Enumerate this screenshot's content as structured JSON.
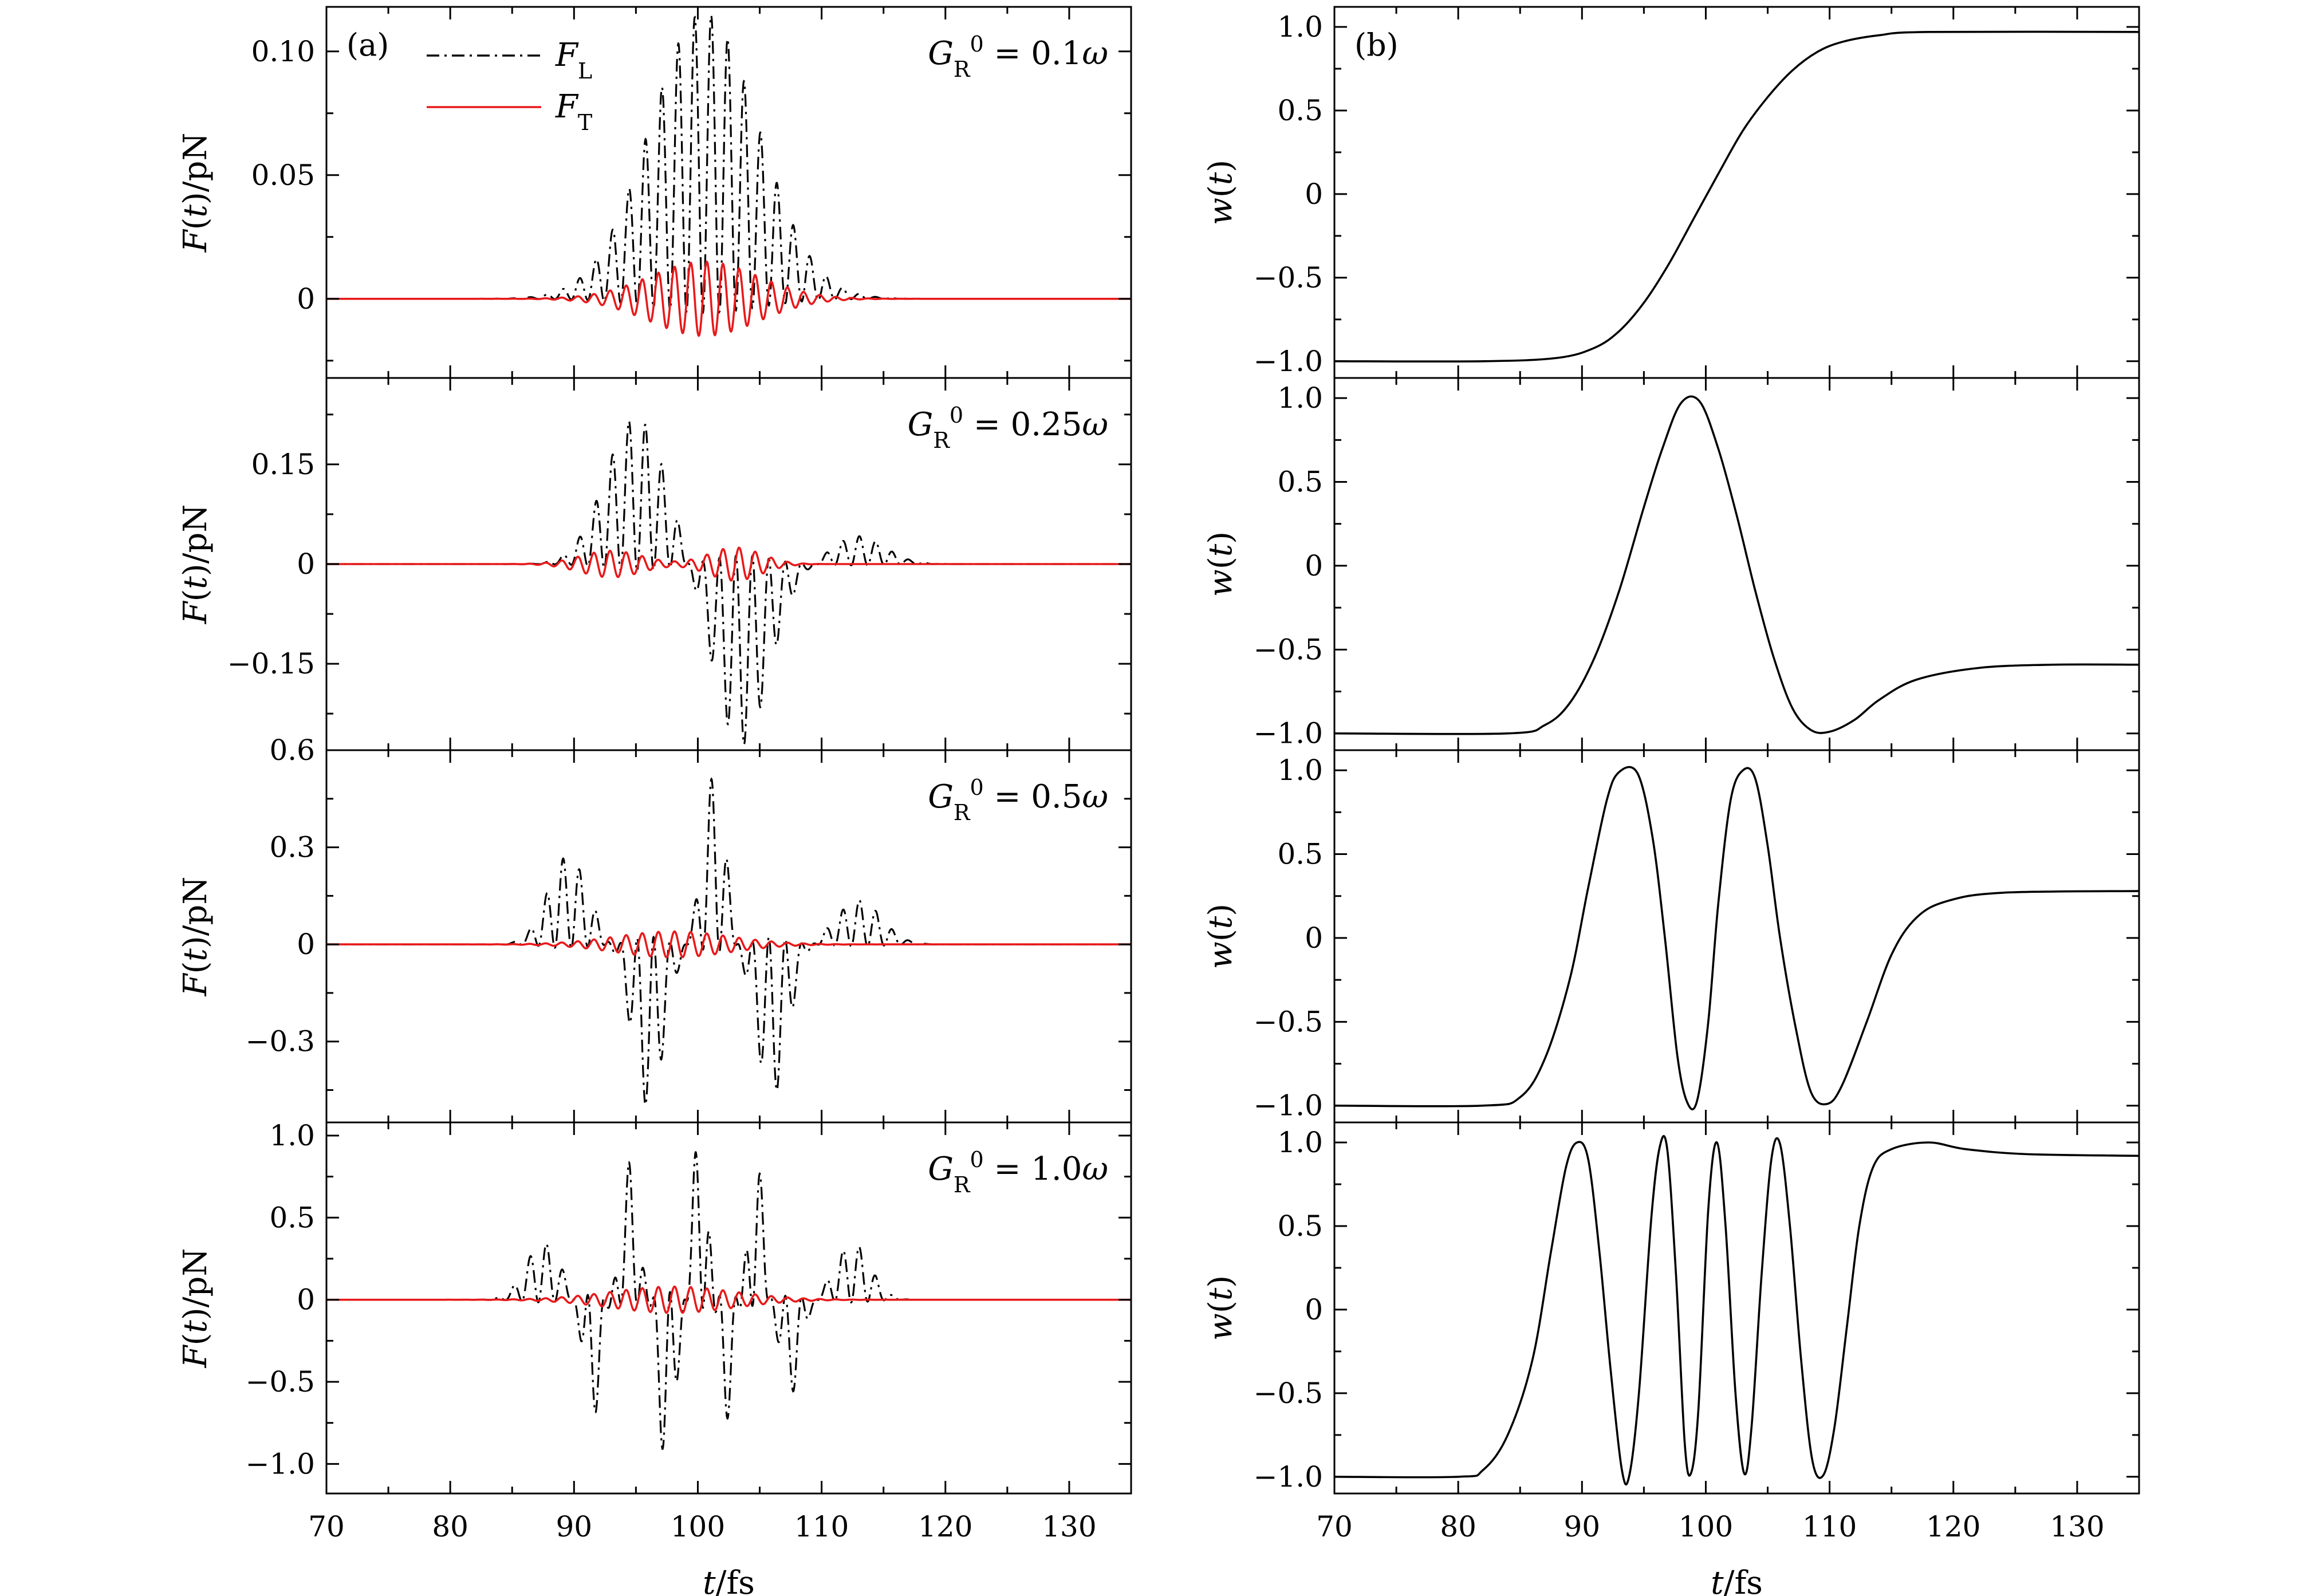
{
  "colors": {
    "FL": "#000000",
    "FT": "#e8191a",
    "w": "#000000"
  },
  "chart_data": [
    {
      "type": "line",
      "panel_label": "(a)",
      "subplots": [
        {
          "annotation": "G_R^0 = 0.1ω",
          "ylabel": "F(t)/pN",
          "ylim": [
            -0.032,
            0.118
          ],
          "yticks": [
            0,
            0.05,
            0.1
          ],
          "ytick_labels": [
            "0",
            "0.05",
            "0.10"
          ],
          "legend": {
            "placement": "top-left",
            "entries": [
              "F_L",
              "F_T"
            ]
          },
          "series": [
            {
              "name": "F_L",
              "style": "dash-dot",
              "envelope": [
                {
                  "center": 100.5,
                  "width": 6.2,
                  "amp": 0.11,
                  "sign": 1
                }
              ]
            },
            {
              "name": "F_T",
              "style": "solid",
              "envelope": [
                {
                  "center": 100.5,
                  "width": 6.2,
                  "amp": 0.015,
                  "sign": 1
                }
              ]
            }
          ]
        },
        {
          "annotation": "G_R^0 = 0.25ω",
          "ylabel": "F(t)/pN",
          "ylim": [
            -0.28,
            0.28
          ],
          "yticks": [
            -0.15,
            0,
            0.15
          ],
          "ytick_labels": [
            "−0.15",
            "0",
            "0.15"
          ],
          "series": [
            {
              "name": "F_L",
              "style": "dash-dot",
              "envelope": [
                {
                  "center": 95,
                  "width": 3.5,
                  "amp": 0.21,
                  "sign": 1
                },
                {
                  "center": 103.5,
                  "width": 3.2,
                  "amp": 0.26,
                  "sign": -1
                },
                {
                  "center": 113,
                  "width": 3.0,
                  "amp": 0.04,
                  "sign": 1
                }
              ]
            },
            {
              "name": "F_T",
              "style": "solid",
              "envelope": [
                {
                  "center": 93,
                  "width": 3.5,
                  "amp": 0.02,
                  "sign": 1
                },
                {
                  "center": 103,
                  "width": 3.0,
                  "amp": 0.025,
                  "sign": 1
                }
              ]
            }
          ]
        },
        {
          "annotation": "G_R^0 = 0.5ω",
          "ylabel": "F(t)/pN",
          "ylim": [
            -0.55,
            0.6
          ],
          "yticks": [
            -0.3,
            0,
            0.3,
            0.6
          ],
          "ytick_labels": [
            "−0.3",
            "0",
            "0.3",
            "0.6"
          ],
          "series": [
            {
              "name": "F_L",
              "style": "dash-dot",
              "envelope": [
                {
                  "center": 89.5,
                  "width": 2.3,
                  "amp": 0.26,
                  "sign": 1
                },
                {
                  "center": 96,
                  "width": 1.8,
                  "amp": 0.48,
                  "sign": -1
                },
                {
                  "center": 101.3,
                  "width": 1.3,
                  "amp": 0.5,
                  "sign": 1
                },
                {
                  "center": 106,
                  "width": 1.8,
                  "amp": 0.45,
                  "sign": -1
                },
                {
                  "center": 113,
                  "width": 2.6,
                  "amp": 0.13,
                  "sign": 1
                }
              ]
            },
            {
              "name": "F_T",
              "style": "solid",
              "envelope": [
                {
                  "center": 98,
                  "width": 6.5,
                  "amp": 0.04,
                  "sign": 1
                }
              ]
            }
          ]
        },
        {
          "annotation": "G_R^0 = 1.0ω",
          "ylabel": "F(t)/pN",
          "ylim": [
            -1.18,
            1.08
          ],
          "yticks": [
            -1.0,
            -0.5,
            0,
            0.5,
            1.0
          ],
          "ytick_labels": [
            "−1.0",
            "−0.5",
            "0",
            "0.5",
            "1.0"
          ],
          "series": [
            {
              "name": "F_L",
              "style": "dash-dot",
              "envelope": [
                {
                  "center": 87.5,
                  "width": 2.0,
                  "amp": 0.33,
                  "sign": 1
                },
                {
                  "center": 91.5,
                  "width": 1.0,
                  "amp": 0.7,
                  "sign": -1
                },
                {
                  "center": 94.5,
                  "width": 1.0,
                  "amp": 0.8,
                  "sign": 1
                },
                {
                  "center": 97.5,
                  "width": 1.0,
                  "amp": 1.0,
                  "sign": -1
                },
                {
                  "center": 100.2,
                  "width": 0.9,
                  "amp": 1.06,
                  "sign": 1
                },
                {
                  "center": 102.3,
                  "width": 1.0,
                  "amp": 0.7,
                  "sign": -1
                },
                {
                  "center": 104.7,
                  "width": 0.9,
                  "amp": 0.85,
                  "sign": 1
                },
                {
                  "center": 107.5,
                  "width": 1.2,
                  "amp": 0.55,
                  "sign": -1
                },
                {
                  "center": 112.5,
                  "width": 2.0,
                  "amp": 0.33,
                  "sign": 1
                }
              ]
            },
            {
              "name": "F_T",
              "style": "solid",
              "envelope": [
                {
                  "center": 98,
                  "width": 7.0,
                  "amp": 0.08,
                  "sign": 1
                }
              ]
            }
          ]
        }
      ],
      "xlim": [
        70,
        135
      ],
      "xticks": [
        70,
        80,
        90,
        100,
        110,
        120,
        130
      ],
      "xlabel": "t/fs"
    },
    {
      "type": "line",
      "panel_label": "(b)",
      "subplots": [
        {
          "ylabel": "w(t)",
          "ylim": [
            -1.1,
            1.12
          ],
          "yticks": [
            -1.0,
            -0.5,
            0,
            0.5,
            1.0
          ],
          "ytick_labels": [
            "−1.0",
            "−0.5",
            "0",
            "0.5",
            "1.0"
          ],
          "points": [
            [
              70,
              -1.0
            ],
            [
              82,
              -1.0
            ],
            [
              88,
              -0.98
            ],
            [
              91,
              -0.92
            ],
            [
              93,
              -0.82
            ],
            [
              95,
              -0.65
            ],
            [
              97,
              -0.42
            ],
            [
              99,
              -0.15
            ],
            [
              101,
              0.12
            ],
            [
              103,
              0.38
            ],
            [
              105,
              0.58
            ],
            [
              107,
              0.74
            ],
            [
              109,
              0.85
            ],
            [
              111,
              0.91
            ],
            [
              114,
              0.95
            ],
            [
              118,
              0.97
            ],
            [
              135,
              0.97
            ]
          ]
        },
        {
          "ylabel": "w(t)",
          "ylim": [
            -1.1,
            1.12
          ],
          "yticks": [
            -1.0,
            -0.5,
            0,
            0.5,
            1.0
          ],
          "ytick_labels": [
            "−1.0",
            "−0.5",
            "0",
            "0.5",
            "1.0"
          ],
          "points": [
            [
              70,
              -1.0
            ],
            [
              84,
              -1.0
            ],
            [
              87,
              -0.95
            ],
            [
              89,
              -0.82
            ],
            [
              91,
              -0.55
            ],
            [
              93,
              -0.15
            ],
            [
              95,
              0.35
            ],
            [
              96.5,
              0.7
            ],
            [
              98,
              0.97
            ],
            [
              99.5,
              0.98
            ],
            [
              101,
              0.7
            ],
            [
              102.5,
              0.3
            ],
            [
              104,
              -0.15
            ],
            [
              105.5,
              -0.55
            ],
            [
              107,
              -0.85
            ],
            [
              108.5,
              -0.98
            ],
            [
              110,
              -0.99
            ],
            [
              112,
              -0.92
            ],
            [
              114,
              -0.8
            ],
            [
              117,
              -0.68
            ],
            [
              122,
              -0.61
            ],
            [
              128,
              -0.59
            ],
            [
              135,
              -0.59
            ]
          ]
        },
        {
          "ylabel": "w(t)",
          "ylim": [
            -1.1,
            1.12
          ],
          "yticks": [
            -1.0,
            -0.5,
            0,
            0.5,
            1.0
          ],
          "ytick_labels": [
            "−1.0",
            "−0.5",
            "0",
            "0.5",
            "1.0"
          ],
          "points": [
            [
              70,
              -1.0
            ],
            [
              82,
              -1.0
            ],
            [
              85,
              -0.95
            ],
            [
              87,
              -0.72
            ],
            [
              89,
              -0.25
            ],
            [
              90.5,
              0.3
            ],
            [
              92,
              0.82
            ],
            [
              93,
              0.99
            ],
            [
              94.5,
              0.98
            ],
            [
              95.7,
              0.6
            ],
            [
              96.7,
              0.0
            ],
            [
              97.7,
              -0.7
            ],
            [
              98.5,
              -0.98
            ],
            [
              99.3,
              -0.97
            ],
            [
              100.2,
              -0.5
            ],
            [
              101,
              0.2
            ],
            [
              102,
              0.82
            ],
            [
              103,
              1.0
            ],
            [
              104,
              0.95
            ],
            [
              105,
              0.55
            ],
            [
              106,
              0.0
            ],
            [
              107.3,
              -0.55
            ],
            [
              108.5,
              -0.92
            ],
            [
              109.8,
              -0.99
            ],
            [
              111,
              -0.88
            ],
            [
              113,
              -0.5
            ],
            [
              115,
              -0.1
            ],
            [
              117,
              0.12
            ],
            [
              119.5,
              0.22
            ],
            [
              124,
              0.27
            ],
            [
              135,
              0.28
            ]
          ]
        },
        {
          "ylabel": "w(t)",
          "ylim": [
            -1.1,
            1.12
          ],
          "yticks": [
            -1.0,
            -0.5,
            0,
            0.5,
            1.0
          ],
          "ytick_labels": [
            "−1.0",
            "−0.5",
            "0",
            "0.5",
            "1.0"
          ],
          "points": [
            [
              70,
              -1.0
            ],
            [
              80,
              -1.0
            ],
            [
              82,
              -0.96
            ],
            [
              84,
              -0.75
            ],
            [
              86,
              -0.3
            ],
            [
              87.5,
              0.35
            ],
            [
              88.7,
              0.85
            ],
            [
              89.6,
              1.0
            ],
            [
              90.5,
              0.9
            ],
            [
              91.4,
              0.35
            ],
            [
              92.3,
              -0.35
            ],
            [
              93.2,
              -0.95
            ],
            [
              93.8,
              -1.0
            ],
            [
              94.6,
              -0.5
            ],
            [
              95.6,
              0.55
            ],
            [
              96.3,
              0.98
            ],
            [
              96.9,
              0.95
            ],
            [
              97.6,
              0.2
            ],
            [
              98.3,
              -0.8
            ],
            [
              98.8,
              -0.98
            ],
            [
              99.4,
              -0.6
            ],
            [
              100.2,
              0.6
            ],
            [
              100.9,
              1.0
            ],
            [
              101.6,
              0.5
            ],
            [
              102.4,
              -0.5
            ],
            [
              103.1,
              -0.98
            ],
            [
              103.7,
              -0.7
            ],
            [
              104.5,
              0.2
            ],
            [
              105.3,
              0.9
            ],
            [
              106,
              0.99
            ],
            [
              106.8,
              0.5
            ],
            [
              107.7,
              -0.3
            ],
            [
              108.6,
              -0.9
            ],
            [
              109.5,
              -0.99
            ],
            [
              110.4,
              -0.7
            ],
            [
              111.4,
              -0.1
            ],
            [
              112.4,
              0.5
            ],
            [
              113.5,
              0.85
            ],
            [
              115,
              0.96
            ],
            [
              118,
              1.0
            ],
            [
              121,
              0.96
            ],
            [
              126,
              0.93
            ],
            [
              135,
              0.92
            ]
          ]
        }
      ],
      "xlim": [
        70,
        135
      ],
      "xticks": [
        70,
        80,
        90,
        100,
        110,
        120,
        130
      ],
      "xlabel": "t/fs"
    }
  ]
}
